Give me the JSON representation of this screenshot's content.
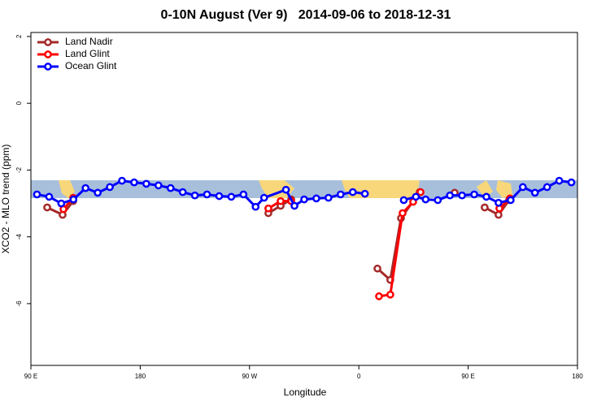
{
  "chart_data": {
    "type": "line",
    "title": "0-10N August (Ver 9)   2014-09-06 to 2018-12-31",
    "xlabel": "Longitude",
    "ylabel": "XCO2 - MLO trend (ppm)",
    "xlim": [
      90,
      540
    ],
    "ylim": [
      -7.85,
      2.12
    ],
    "xticks": [
      {
        "value": 90,
        "label": "90 E"
      },
      180,
      {
        "value": 270,
        "label": "90 W"
      },
      {
        "value": 360,
        "label": "0"
      },
      {
        "value": 450,
        "label": "90 E"
      },
      {
        "value": 540,
        "label": "180"
      }
    ],
    "yticks": [
      2,
      0,
      -2,
      -4,
      -6
    ],
    "legend": "top-left",
    "series": [
      {
        "name": "Land Nadir",
        "color": "#a52a2a",
        "x": [
          103.4,
          116.1,
          124.8,
          200,
          285.5,
          295.6,
          304.3,
          340,
          375.3,
          385.9,
          394.7,
          410.1,
          425,
          438.9,
          450,
          463.6,
          475,
          483.7
        ],
        "values": [
          -3.12,
          -3.34,
          -2.93,
          null,
          -3.29,
          -3.07,
          -2.88,
          null,
          -4.95,
          -5.29,
          -3.44,
          -2.66,
          null,
          -2.68,
          null,
          -3.12,
          -3.34,
          -2.9
        ]
      },
      {
        "name": "Land Glint",
        "color": "#ff0000",
        "x": [
          116.8,
          124.8,
          200,
          285.5,
          295.6,
          304.3,
          340,
          376.6,
          385.9,
          396,
          404.7,
          410.8,
          450,
          475.7,
          484.4
        ],
        "values": [
          -3.17,
          -2.83,
          null,
          -3.15,
          -2.93,
          -2.93,
          null,
          -5.78,
          -5.73,
          -3.29,
          -2.95,
          -2.66,
          null,
          -3.15,
          -2.85
        ]
      },
      {
        "name": "Ocean Glint",
        "color": "#0000ff",
        "x": [
          95,
          105,
          115,
          125,
          135,
          145,
          155,
          165,
          175,
          185,
          195,
          205,
          215,
          225,
          235,
          245,
          255,
          265,
          275,
          282,
          300,
          307,
          315,
          325,
          335,
          345,
          355,
          365,
          380,
          397,
          407,
          415,
          425,
          435,
          445,
          455,
          465,
          475,
          485,
          495,
          505,
          515,
          525,
          535
        ],
        "values": [
          -2.73,
          -2.8,
          -3.0,
          -2.88,
          -2.54,
          -2.68,
          -2.51,
          -2.32,
          -2.37,
          -2.41,
          -2.46,
          -2.54,
          -2.66,
          -2.76,
          -2.73,
          -2.78,
          -2.8,
          -2.73,
          -3.1,
          -2.83,
          -2.59,
          -3.07,
          -2.88,
          -2.85,
          -2.83,
          -2.73,
          -2.66,
          -2.71,
          null,
          -2.9,
          -2.8,
          -2.88,
          -2.9,
          -2.76,
          -2.76,
          -2.73,
          -2.8,
          -2.98,
          -2.9,
          -2.51,
          -2.68,
          -2.51,
          -2.32,
          -2.37
        ]
      }
    ]
  }
}
